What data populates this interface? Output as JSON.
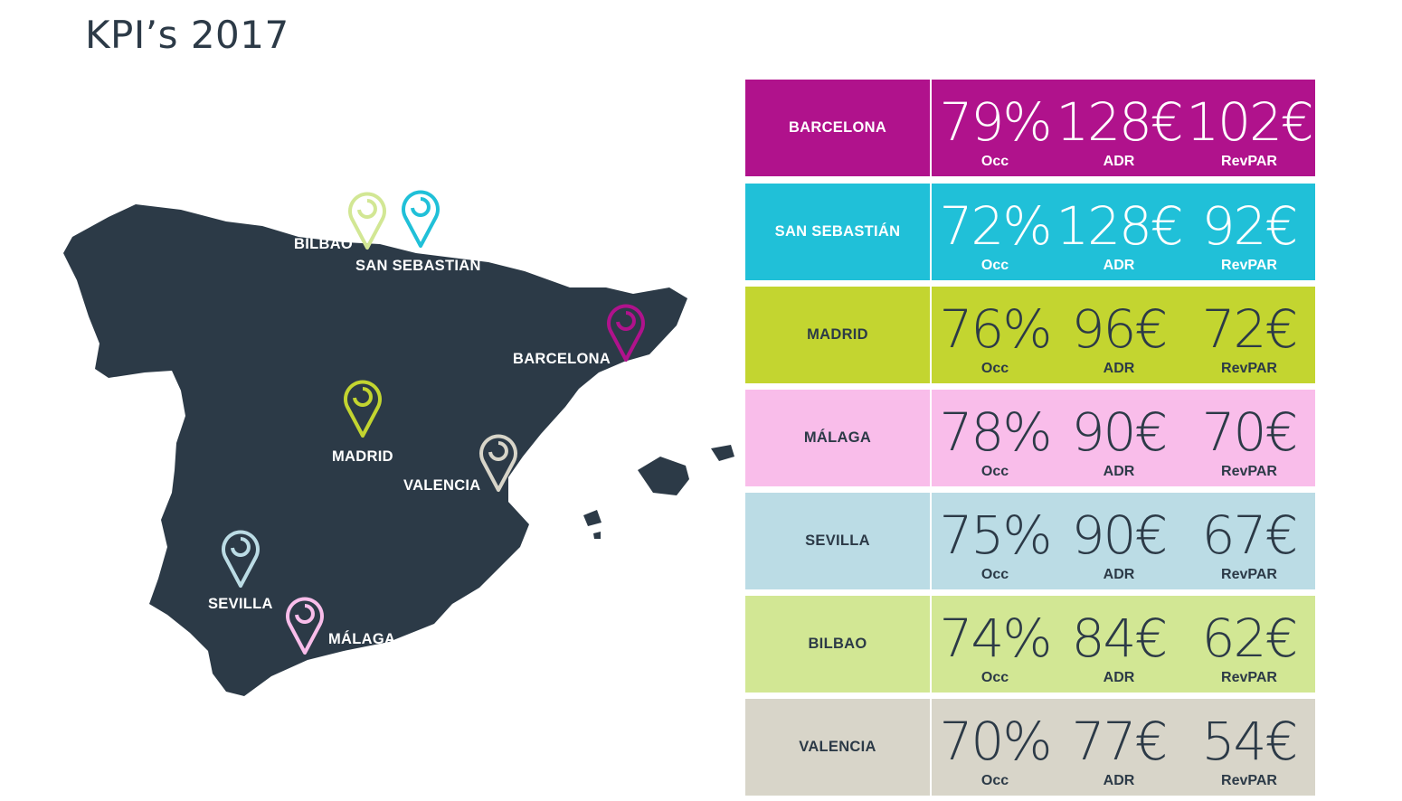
{
  "page": {
    "title": "KPI’s 2017"
  },
  "colors": {
    "map_fill": "#2c3a47",
    "barcelona": "#b0128c",
    "san_sebastian": "#20c0d8",
    "madrid": "#c3d530",
    "malaga": "#f9bdea",
    "sevilla": "#bbdce5",
    "bilbao": "#d2e794",
    "valencia": "#d8d5c9",
    "dark_text": "#2c3a47"
  },
  "map": {
    "labels": {
      "bilbao": "BILBAO",
      "san_sebastian": "SAN SEBASTIÁN",
      "barcelona": "BARCELONA",
      "madrid": "MADRID",
      "valencia": "VALENCIA",
      "sevilla": "SEVILLA",
      "malaga": "MÁLAGA"
    },
    "pin_icon": "location-pin-icon"
  },
  "kpis": {
    "metric_labels": {
      "occ": "Occ",
      "adr": "ADR",
      "revpar": "RevPAR"
    },
    "rows": [
      {
        "city": "BARCELONA",
        "occ": "79%",
        "adr": "128€",
        "revpar": "102€"
      },
      {
        "city": "SAN SEBASTIÁN",
        "occ": "72%",
        "adr": "128€",
        "revpar": "92€"
      },
      {
        "city": "MADRID",
        "occ": "76%",
        "adr": "96€",
        "revpar": "72€"
      },
      {
        "city": "MÁLAGA",
        "occ": "78%",
        "adr": "90€",
        "revpar": "70€"
      },
      {
        "city": "SEVILLA",
        "occ": "75%",
        "adr": "90€",
        "revpar": "67€"
      },
      {
        "city": "BILBAO",
        "occ": "74%",
        "adr": "84€",
        "revpar": "62€"
      },
      {
        "city": "VALENCIA",
        "occ": "70%",
        "adr": "77€",
        "revpar": "54€"
      }
    ]
  }
}
